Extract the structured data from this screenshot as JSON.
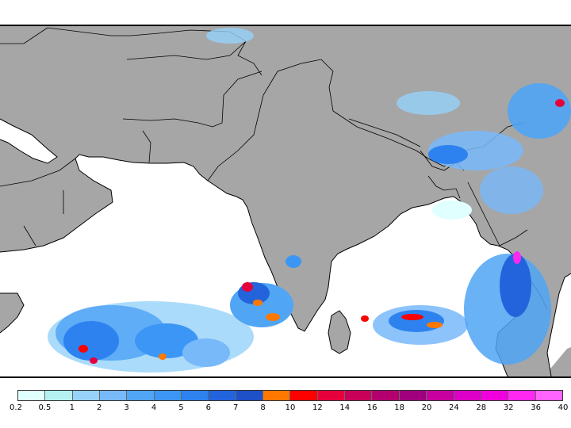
{
  "map": {
    "colors": {
      "land": "#a6a6a6",
      "ocean": "#ffffff",
      "coastline": "#000000",
      "border": "#000000"
    }
  },
  "legend": {
    "colors": [
      "#e0ffff",
      "#b4f0f0",
      "#96d2fa",
      "#78b9fa",
      "#50a5f5",
      "#3c96f5",
      "#2d82f0",
      "#2364dc",
      "#1e50c8",
      "#ff7800",
      "#ff0000",
      "#e6003c",
      "#c8005a",
      "#b4006e",
      "#a0007d",
      "#c800a0",
      "#dc00c8",
      "#f000dc",
      "#ff28f0",
      "#ff64ff"
    ],
    "labels": [
      "0.2",
      "0.5",
      "1",
      "2",
      "3",
      "4",
      "5",
      "6",
      "7",
      "8",
      "10",
      "12",
      "14",
      "16",
      "18",
      "20",
      "24",
      "28",
      "32",
      "36",
      "40"
    ]
  }
}
